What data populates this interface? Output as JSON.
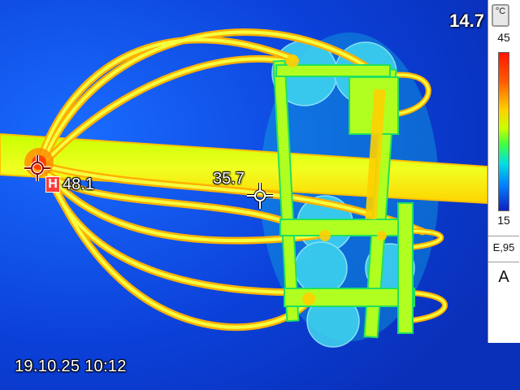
{
  "readouts": {
    "spot_temp": "35.7",
    "hotspot_badge": "H",
    "hotspot_temp": "48.1",
    "timestamp": "19.10.25 10:12"
  },
  "sidebar": {
    "max_temp": "14.7",
    "unit": "°C",
    "scale_max": "45",
    "scale_min": "15",
    "emissivity": "E,95",
    "mode": "A"
  },
  "colors": {
    "background": "#0a35d0",
    "hot": "#ff3b3b",
    "warm": "#ffd400",
    "mid": "#b8ff00"
  },
  "icons": [
    "crosshair-icon",
    "hotspot-crosshair-icon",
    "thermometer-icon"
  ]
}
